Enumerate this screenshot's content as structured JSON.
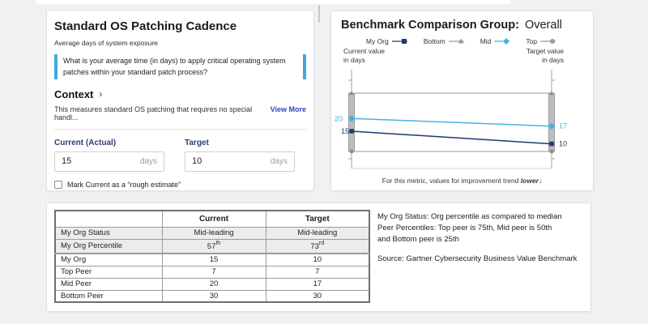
{
  "colors": {
    "accent_bar_blue": "#41a7dd",
    "link_blue": "#2f45c5",
    "navy": "#1e3a6e",
    "light_blue": "#46b0e4",
    "series_gray": "#9a9a9a",
    "range_bar_fill": "#bdbdbd",
    "range_bar_stroke": "#8d8d8d"
  },
  "patch_card": {
    "title": "Standard OS Patching Cadence",
    "subtitle": "Average days of system exposure",
    "question": "What is your average time (in days) to apply critical operating system patches within your standard patch process?",
    "context_label": "Context",
    "context_chevron": "›",
    "description_truncated": "This measures standard OS patching that requires no special handl...",
    "view_more_label": "View More",
    "current_field": {
      "label": "Current (Actual)",
      "value": "15",
      "unit": "days"
    },
    "target_field": {
      "label": "Target",
      "value": "10",
      "unit": "days"
    },
    "estimate_checkbox_label": "Mark Current as a “rough estimate”",
    "estimate_checkbox_checked": false
  },
  "benchmark_card": {
    "title": "Benchmark Comparison Group:",
    "group_value": "Overall",
    "left_axis_label": "Current value\nin days",
    "right_axis_label": "Target value\nin days",
    "footnote_prefix": "For this metric, values for improvement trend ",
    "footnote_trend": "lower",
    "footnote_arrow": "↓"
  },
  "chart_data": {
    "type": "line",
    "subtype": "slope",
    "categories": [
      "Current",
      "Target"
    ],
    "series": [
      {
        "name": "My Org",
        "values": [
          15,
          10
        ],
        "color": "#1e3a6e",
        "marker": "square",
        "labeled": true
      },
      {
        "name": "Bottom",
        "values": [
          30,
          30
        ],
        "color": "#9a9a9a",
        "marker": "triangle",
        "labeled": false
      },
      {
        "name": "Mid",
        "values": [
          20,
          17
        ],
        "color": "#46b0e4",
        "marker": "diamond",
        "labeled": true
      },
      {
        "name": "Top",
        "values": [
          7,
          7
        ],
        "color": "#9a9a9a",
        "marker": "circle",
        "labeled": false
      }
    ],
    "range_bar": {
      "low": 7,
      "high": 30
    },
    "ylim": [
      0,
      39
    ],
    "grid": false,
    "legend_position": "top",
    "legend": [
      {
        "label": "My Org",
        "marker": "square",
        "color": "#1e3a6e"
      },
      {
        "label": "Bottom",
        "marker": "triangle",
        "color": "#9a9a9a"
      },
      {
        "label": "Mid",
        "marker": "diamond",
        "color": "#46b0e4"
      },
      {
        "label": "Top",
        "marker": "circle",
        "color": "#9a9a9a"
      }
    ]
  },
  "summary_card": {
    "table": {
      "headers": [
        "",
        "Current",
        "Target"
      ],
      "rows": [
        {
          "label": "My Org Status",
          "current": [
            "Mid-leading"
          ],
          "target": [
            "Mid-leading"
          ],
          "shaded": true,
          "tall": false,
          "thick": false
        },
        {
          "label": "My Org Percentile",
          "current": [
            "57",
            "th"
          ],
          "target": [
            "73",
            "rd"
          ],
          "shaded": true,
          "tall": true,
          "thick": true
        },
        {
          "label": "My Org",
          "current": [
            "15"
          ],
          "target": [
            "10"
          ],
          "shaded": false,
          "tall": false,
          "thick": false
        },
        {
          "label": "Top Peer",
          "current": [
            "7"
          ],
          "target": [
            "7"
          ],
          "shaded": false,
          "tall": false,
          "thick": false
        },
        {
          "label": "Mid Peer",
          "current": [
            "20"
          ],
          "target": [
            "17"
          ],
          "shaded": false,
          "tall": false,
          "thick": false
        },
        {
          "label": "Bottom Peer",
          "current": [
            "30"
          ],
          "target": [
            "30"
          ],
          "shaded": false,
          "tall": false,
          "thick": false
        }
      ]
    },
    "note_text": "My Org Status: Org percentile as compared to median\nPeer Percentiles: Top peer is 75th, Mid peer is 50th\nand Bottom peer is 25th",
    "source": "Source: Gartner Cybersecurity Business Value Benchmark"
  }
}
